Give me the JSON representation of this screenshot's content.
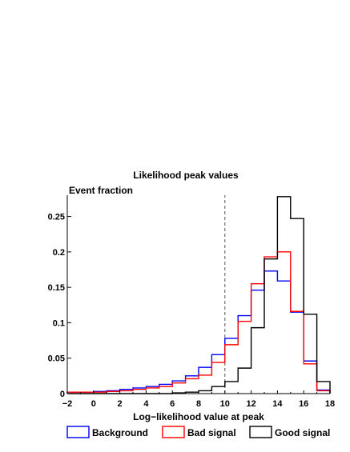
{
  "chart_data": {
    "type": "step-histogram",
    "title": "Likelihood peak values",
    "ylabel": "Event fraction",
    "xlabel": "Log−likelihood value at peak",
    "xlim": [
      -2,
      18
    ],
    "ylim": [
      0,
      0.28
    ],
    "x_ticks": [
      {
        "value": -2,
        "label": "−2"
      },
      {
        "value": 0,
        "label": "0"
      },
      {
        "value": 2,
        "label": "2"
      },
      {
        "value": 4,
        "label": "4"
      },
      {
        "value": 6,
        "label": "6"
      },
      {
        "value": 8,
        "label": "8"
      },
      {
        "value": 10,
        "label": "10"
      },
      {
        "value": 12,
        "label": "12"
      },
      {
        "value": 14,
        "label": "14"
      },
      {
        "value": 16,
        "label": "16"
      },
      {
        "value": 18,
        "label": "18"
      }
    ],
    "y_ticks": [
      {
        "value": 0,
        "label": "0"
      },
      {
        "value": 0.05,
        "label": "0.05"
      },
      {
        "value": 0.1,
        "label": "0.1"
      },
      {
        "value": 0.15,
        "label": "0.15"
      },
      {
        "value": 0.2,
        "label": "0.2"
      },
      {
        "value": 0.25,
        "label": "0.25"
      }
    ],
    "bin_edges": [
      -2,
      -1,
      0,
      1,
      2,
      3,
      4,
      5,
      6,
      7,
      8,
      9,
      10,
      11,
      12,
      13,
      14,
      15,
      16,
      17,
      18
    ],
    "series": [
      {
        "name": "Background",
        "color": "#0000ff",
        "values": [
          0.002,
          0.002,
          0.003,
          0.004,
          0.006,
          0.008,
          0.01,
          0.013,
          0.018,
          0.025,
          0.037,
          0.055,
          0.078,
          0.11,
          0.146,
          0.173,
          0.159,
          0.115,
          0.046,
          0.005
        ]
      },
      {
        "name": "Bad signal",
        "color": "#ff0000",
        "values": [
          0.002,
          0.002,
          0.002,
          0.003,
          0.004,
          0.006,
          0.008,
          0.01,
          0.015,
          0.021,
          0.026,
          0.044,
          0.069,
          0.102,
          0.155,
          0.193,
          0.2,
          0.116,
          0.042,
          0.004
        ]
      },
      {
        "name": "Good signal",
        "color": "#000000",
        "values": [
          0.0,
          0.0,
          0.0,
          0.0,
          0.0,
          0.0,
          0.0,
          0.0,
          0.001,
          0.002,
          0.004,
          0.01,
          0.017,
          0.036,
          0.093,
          0.19,
          0.278,
          0.247,
          0.112,
          0.017
        ]
      }
    ],
    "reference_line": {
      "x": 10,
      "style": "dashed"
    },
    "legend_position": "bottom"
  }
}
